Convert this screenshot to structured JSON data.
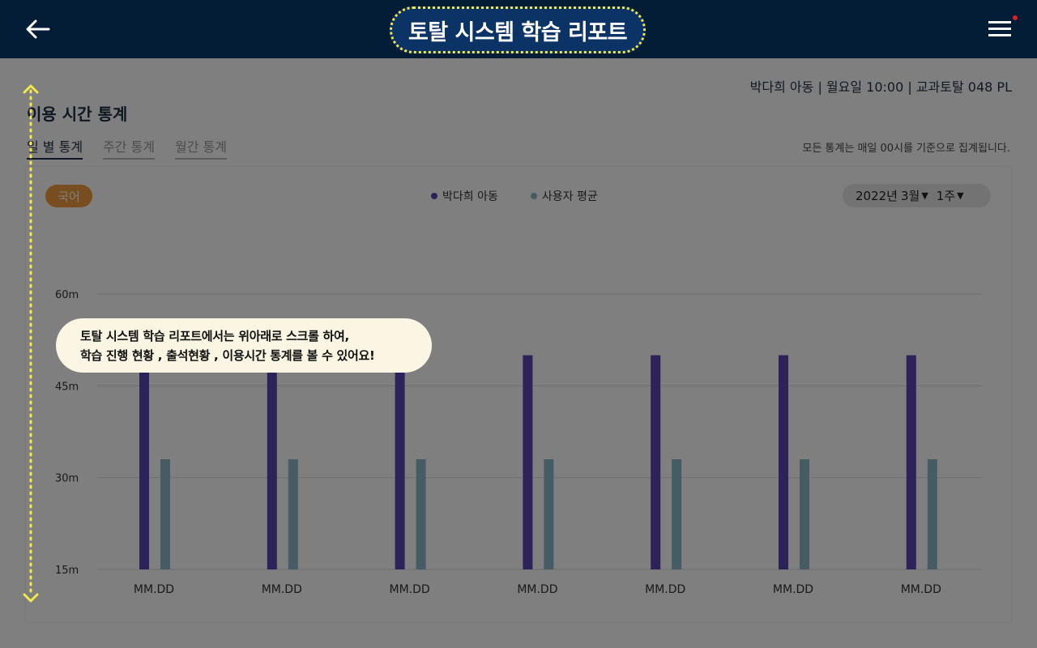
{
  "header": {
    "title": "토탈 시스템 학습 리포트",
    "back_icon": "arrow-left-icon",
    "menu_icon": "hamburger-menu-icon",
    "notification_color": "#e02020"
  },
  "info_line": "박다희 아동 | 월요일 10:00 | 교과토탈 048 PL",
  "section_title": "이용 시간 통계",
  "tabs": [
    {
      "label": "일 별 통계",
      "active": true
    },
    {
      "label": "주간 통계",
      "active": false
    },
    {
      "label": "월간 통계",
      "active": false
    }
  ],
  "notice": "모든 통계는 매일 00시를 기준으로 집계됩니다.",
  "subject_badge": "국어",
  "period": {
    "year": "2022년",
    "month": "3월",
    "week": "1주"
  },
  "colors": {
    "header_bg": "#031d37",
    "accent_badge": "#f09a3e",
    "series_child": "#5b45b5",
    "series_avg": "#8ab8c8",
    "highlight_border": "#f2e948"
  },
  "chart_data": {
    "type": "bar",
    "categories": [
      "MM.DD",
      "MM.DD",
      "MM.DD",
      "MM.DD",
      "MM.DD",
      "MM.DD",
      "MM.DD"
    ],
    "series": [
      {
        "name": "박다희 아동",
        "values": [
          50,
          50,
          50,
          50,
          50,
          50,
          50
        ]
      },
      {
        "name": "사용자 평균",
        "values": [
          33,
          33,
          33,
          33,
          33,
          33,
          33
        ]
      }
    ],
    "yticks": [
      "15m",
      "30m",
      "45m",
      "60m"
    ],
    "ylim": [
      15,
      60
    ],
    "grid": true,
    "legend": "top-center"
  },
  "tooltip": {
    "line1": "토탈 시스템 학습 리포트에서는 위아래로 스크롤 하여,",
    "line2": "학습 진행 현황 , 출석현황 , 이용시간 통계를 볼 수 있어요!"
  },
  "scroll_hint_icon": "vertical-double-arrow-icon"
}
